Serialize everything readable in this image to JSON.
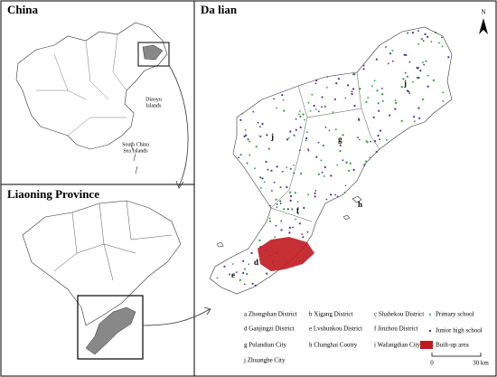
{
  "china": {
    "title": "China",
    "diaoyu": [
      "Diaoyu",
      "Islands"
    ],
    "south_china_sea": [
      "South China",
      "Sea Islands"
    ]
  },
  "liaoning": {
    "title": "Liaoning Province"
  },
  "dalian": {
    "title": "Da lian",
    "north": "N",
    "map_labels": [
      "j",
      "j",
      "g",
      "f",
      "h",
      "d",
      "e"
    ],
    "districts": [
      "a Zhongshan District",
      "b Xigang District",
      "c Shahekou District",
      "d Ganjingzi District",
      "e Lvshunkou District",
      "f Jinzhou District",
      "g Pulandian City",
      "h Changhai Coutry",
      "i Wafangdian City",
      "j Zhuanghe City"
    ],
    "symbols": [
      "Primary school",
      "Junior high school",
      "Built-up area"
    ],
    "scale": [
      "0",
      "30 km"
    ]
  }
}
